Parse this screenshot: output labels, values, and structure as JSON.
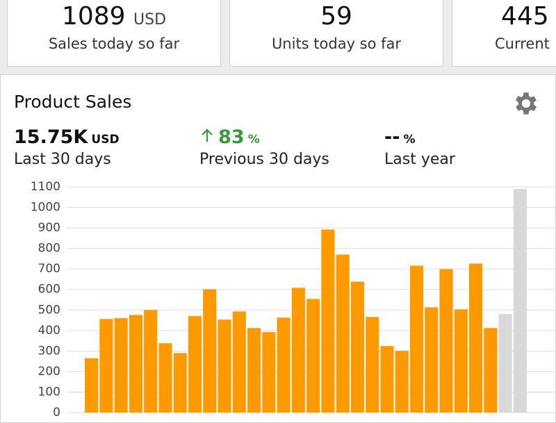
{
  "cards": [
    {
      "value": "1089",
      "unit": "USD",
      "label": "Sales today so far"
    },
    {
      "value": "59",
      "label": "Units today so far"
    },
    {
      "value": "445",
      "label": "Current"
    }
  ],
  "panel": {
    "title": "Product Sales",
    "stats": [
      {
        "value": "15.75K",
        "unit": "USD",
        "label": "Last 30 days"
      },
      {
        "value": "83",
        "unit": "%",
        "label": "Previous 30 days"
      },
      {
        "value": "--",
        "unit": "%",
        "label": "Last year"
      }
    ]
  },
  "chart_data": {
    "type": "bar",
    "categories": [
      null,
      null,
      null,
      null,
      null,
      null,
      null,
      null,
      null,
      null,
      null,
      null,
      null,
      null,
      null,
      null,
      null,
      null,
      null,
      null,
      null,
      null,
      null,
      null,
      null,
      null,
      null,
      null,
      null,
      null
    ],
    "values": [
      265,
      456,
      460,
      476,
      500,
      338,
      290,
      470,
      601,
      453,
      493,
      412,
      392,
      463,
      608,
      554,
      892,
      770,
      638,
      466,
      324,
      301,
      716,
      513,
      699,
      503,
      726,
      412,
      480,
      1090
    ],
    "colors": [
      "#ff9900",
      "#ff9900",
      "#ff9900",
      "#ff9900",
      "#ff9900",
      "#ff9900",
      "#ff9900",
      "#ff9900",
      "#ff9900",
      "#ff9900",
      "#ff9900",
      "#ff9900",
      "#ff9900",
      "#ff9900",
      "#ff9900",
      "#ff9900",
      "#ff9900",
      "#ff9900",
      "#ff9900",
      "#ff9900",
      "#ff9900",
      "#ff9900",
      "#ff9900",
      "#ff9900",
      "#ff9900",
      "#ff9900",
      "#ff9900",
      "#ff9900",
      "#d8d8d8",
      "#d8d8d8"
    ],
    "ylim": [
      0,
      1100
    ],
    "yticks": [
      0,
      100,
      200,
      300,
      400,
      500,
      600,
      700,
      800,
      900,
      1000,
      1100
    ],
    "grid": true
  }
}
